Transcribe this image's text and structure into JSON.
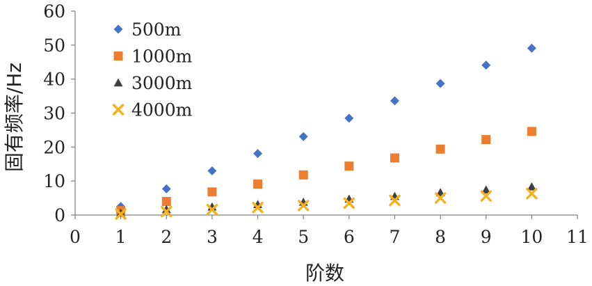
{
  "chart_data": {
    "type": "scatter",
    "xlabel": "阶数",
    "ylabel": "固有频率/Hz",
    "xlim": [
      0,
      11
    ],
    "ylim": [
      0,
      60
    ],
    "xticks": [
      0,
      1,
      2,
      3,
      4,
      5,
      6,
      7,
      8,
      9,
      10,
      11
    ],
    "yticks": [
      0,
      10,
      20,
      30,
      40,
      50,
      60
    ],
    "grid": false,
    "legend": "top-left",
    "series": [
      {
        "name": "500m",
        "marker": "diamond",
        "color": "#4472C4",
        "x": [
          1,
          2,
          3,
          4,
          5,
          6,
          7,
          8,
          9,
          10
        ],
        "y": [
          2.5,
          7.7,
          13.0,
          18.1,
          23.1,
          28.5,
          33.6,
          38.7,
          44.1,
          49.1
        ]
      },
      {
        "name": "1000m",
        "marker": "square",
        "color": "#ED7D31",
        "x": [
          1,
          2,
          3,
          4,
          5,
          6,
          7,
          8,
          9,
          10
        ],
        "y": [
          1.3,
          4.0,
          6.8,
          9.1,
          11.8,
          14.4,
          16.8,
          19.4,
          22.2,
          24.6
        ]
      },
      {
        "name": "3000m",
        "marker": "triangle",
        "color": "#404040",
        "x": [
          1,
          2,
          3,
          4,
          5,
          6,
          7,
          8,
          9,
          10
        ],
        "y": [
          0.6,
          1.6,
          2.4,
          3.1,
          3.8,
          4.7,
          5.5,
          6.6,
          7.4,
          8.3
        ]
      },
      {
        "name": "4000m",
        "marker": "x",
        "color": "#F5B120",
        "x": [
          1,
          2,
          3,
          4,
          5,
          6,
          7,
          8,
          9,
          10
        ],
        "y": [
          0.3,
          1.0,
          1.6,
          2.2,
          2.8,
          3.5,
          4.3,
          5.0,
          5.6,
          6.3
        ]
      }
    ]
  }
}
